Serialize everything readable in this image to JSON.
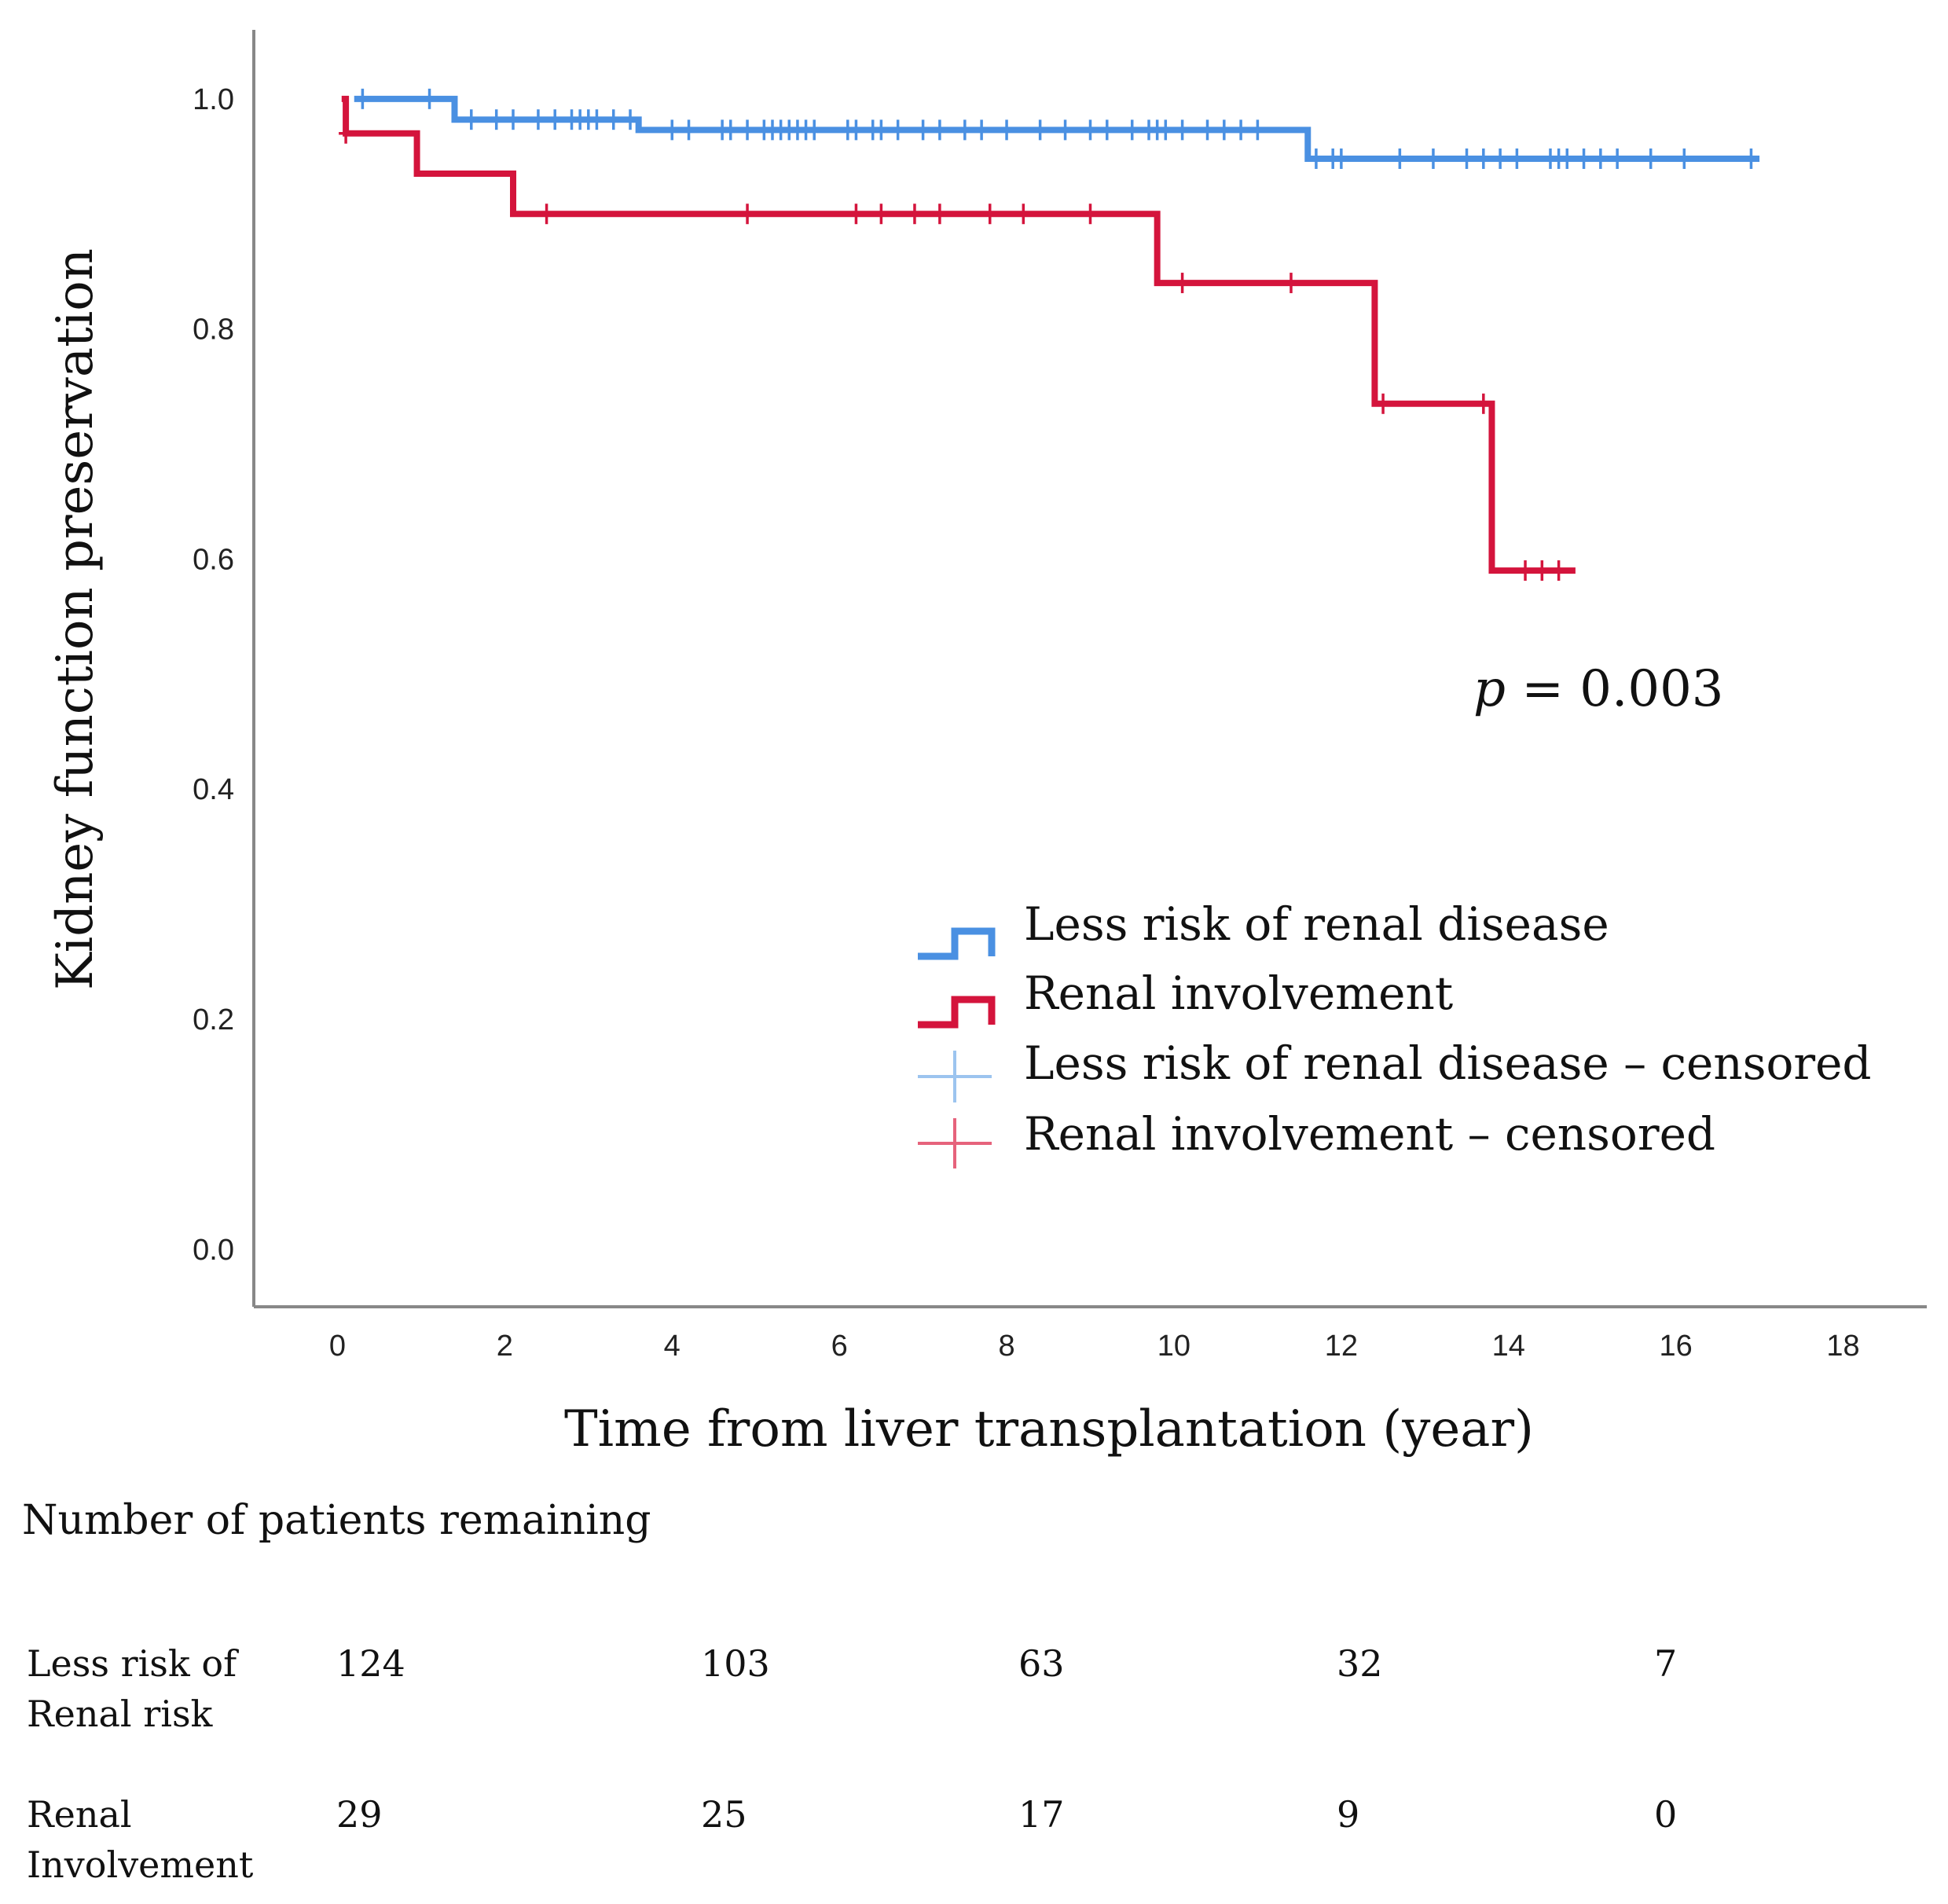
{
  "chart_data": {
    "type": "line",
    "subtype": "kaplan-meier",
    "ylabel": "Kidney function preservation",
    "xlabel": "Time from liver transplantation (year)",
    "xlim": [
      -1,
      19
    ],
    "ylim": [
      -0.05,
      1.06
    ],
    "xticks": [
      "0",
      "2",
      "4",
      "6",
      "8",
      "10",
      "12",
      "14",
      "16",
      "18"
    ],
    "yticks": [
      "0.0",
      "0.2",
      "0.4",
      "0.6",
      "0.8",
      "1.0"
    ],
    "annotation": {
      "p_symbol": "p",
      "p_text": " = 0.003"
    },
    "series": [
      {
        "name": "Less risk of renal disease",
        "color": "#4a90e2",
        "steps": [
          [
            0.2,
            1.0
          ],
          [
            1.4,
            0.982
          ],
          [
            3.6,
            0.973
          ],
          [
            11.6,
            0.948
          ],
          [
            17.0,
            0.948
          ]
        ],
        "censored": [
          0.3,
          1.1,
          1.6,
          1.9,
          2.1,
          2.4,
          2.6,
          2.8,
          2.9,
          3.0,
          3.1,
          3.3,
          3.5,
          4.0,
          4.2,
          4.6,
          4.7,
          4.9,
          5.1,
          5.2,
          5.3,
          5.4,
          5.5,
          5.6,
          5.7,
          6.1,
          6.2,
          6.4,
          6.5,
          6.7,
          7.0,
          7.2,
          7.5,
          7.7,
          8.0,
          8.4,
          8.7,
          9.0,
          9.2,
          9.5,
          9.7,
          9.8,
          9.9,
          10.1,
          10.4,
          10.6,
          10.8,
          11.0,
          11.7,
          11.9,
          12.0,
          12.7,
          13.1,
          13.5,
          13.7,
          13.9,
          14.1,
          14.5,
          14.6,
          14.7,
          14.9,
          15.1,
          15.3,
          15.7,
          16.1,
          16.9
        ]
      },
      {
        "name": "Renal involvement",
        "color": "#d4143c",
        "steps": [
          [
            0.05,
            1.0
          ],
          [
            0.1,
            0.97
          ],
          [
            0.95,
            0.935
          ],
          [
            2.1,
            0.9
          ],
          [
            9.8,
            0.84
          ],
          [
            12.4,
            0.735
          ],
          [
            13.8,
            0.59
          ],
          [
            14.8,
            0.59
          ]
        ],
        "censored": [
          0.1,
          2.5,
          4.9,
          6.2,
          6.5,
          6.9,
          7.2,
          7.8,
          8.2,
          9.0,
          10.1,
          11.4,
          12.5,
          13.7,
          14.2,
          14.4,
          14.6
        ]
      }
    ],
    "legend": {
      "position": "lower-right",
      "entries": [
        "Less risk of renal disease",
        "Renal involvement",
        "Less risk of renal disease – censored",
        "Renal involvement – censored"
      ]
    }
  },
  "risk_table": {
    "title": "Number of patients remaining",
    "rows": [
      {
        "label_line1": "Less risk of",
        "label_line2": "Renal risk",
        "values": [
          "124",
          "103",
          "63",
          "32",
          "7"
        ]
      },
      {
        "label_line1": "Renal",
        "label_line2": "Involvement",
        "values": [
          "29",
          "25",
          "17",
          "9",
          "0"
        ]
      }
    ]
  }
}
